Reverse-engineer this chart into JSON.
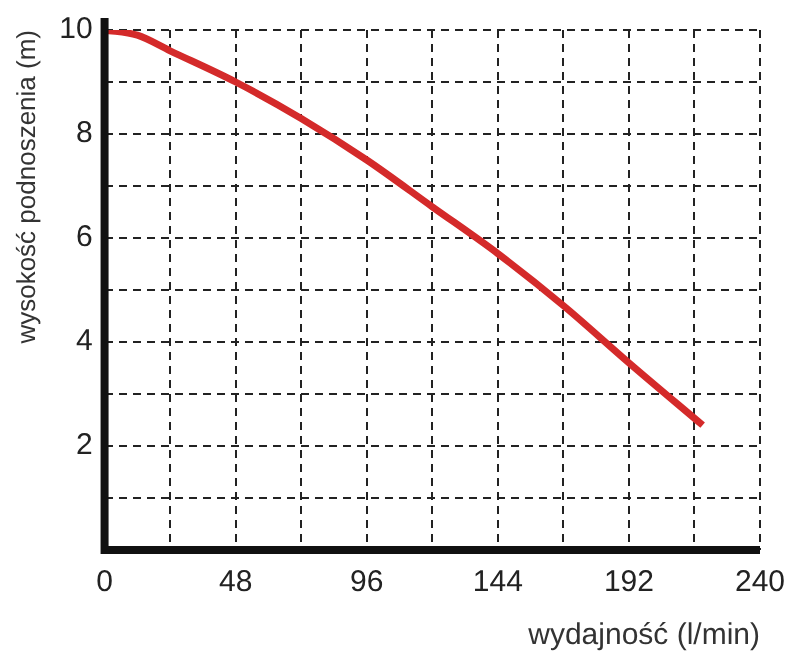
{
  "chart_data": {
    "type": "line",
    "xlabel": "wydajność (l/min)",
    "ylabel": "wysokość podnoszenia (m)",
    "x": [
      0,
      12,
      24,
      48,
      72,
      96,
      120,
      144,
      168,
      192,
      219
    ],
    "series": [
      {
        "color": "#d42a2a",
        "values": [
          10,
          9.9,
          9.6,
          9.0,
          8.3,
          7.5,
          6.6,
          5.7,
          4.7,
          3.6,
          2.4
        ]
      }
    ],
    "xlim": [
      0,
      240
    ],
    "ylim": [
      0,
      10
    ],
    "xticks": [
      0,
      {
        "value": 24,
        "label": null
      },
      48,
      {
        "value": 72,
        "label": null
      },
      96,
      {
        "value": 120,
        "label": null
      },
      144,
      {
        "value": 168,
        "label": null
      },
      192,
      {
        "value": 216,
        "label": null
      },
      240
    ],
    "yticks": [
      {
        "value": 0,
        "label": null
      },
      {
        "value": 1,
        "label": null
      },
      2,
      {
        "value": 3,
        "label": null
      },
      4,
      {
        "value": 5,
        "label": null
      },
      6,
      {
        "value": 7,
        "label": null
      },
      8,
      {
        "value": 9,
        "label": null
      },
      10
    ],
    "grid": true,
    "legend": false,
    "marker": "none",
    "line_style": "solid"
  }
}
